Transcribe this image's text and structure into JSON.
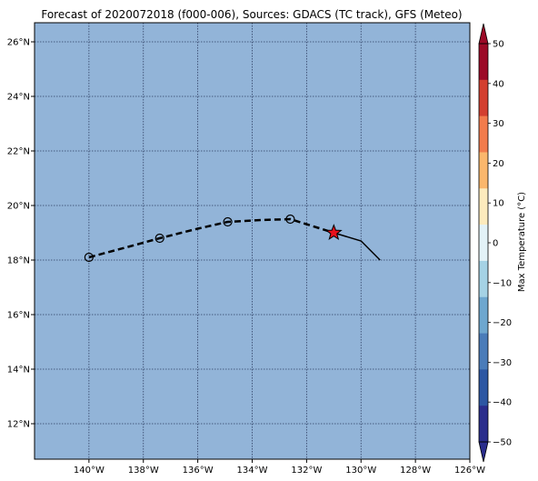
{
  "title": "Forecast of 2020072018 (f000-006), Sources: GDACS (TC track), GFS (Meteo)",
  "map": {
    "lon_range": [
      -142,
      -126
    ],
    "lat_range": [
      10.7,
      26.7
    ],
    "ocean_color": "#92b4d8",
    "grid": true,
    "lon_ticks": [
      -140,
      -138,
      -136,
      -134,
      -132,
      -130,
      -128,
      -126
    ],
    "lon_tick_labels": [
      "140°W",
      "138°W",
      "136°W",
      "134°W",
      "132°W",
      "130°W",
      "128°W",
      "126°W"
    ],
    "lat_ticks": [
      12,
      14,
      16,
      18,
      20,
      22,
      24,
      26
    ],
    "lat_tick_labels": [
      "12°N",
      "14°N",
      "16°N",
      "18°N",
      "20°N",
      "22°N",
      "24°N",
      "26°N"
    ]
  },
  "track": {
    "forecast_points": [
      {
        "lon": -140.0,
        "lat": 18.1
      },
      {
        "lon": -137.4,
        "lat": 18.8
      },
      {
        "lon": -134.9,
        "lat": 19.4
      },
      {
        "lon": -132.6,
        "lat": 19.5
      }
    ],
    "forecast_line": [
      {
        "lon": -140.0,
        "lat": 18.1
      },
      {
        "lon": -138.5,
        "lat": 18.5
      },
      {
        "lon": -137.4,
        "lat": 18.8
      },
      {
        "lon": -136.0,
        "lat": 19.15
      },
      {
        "lon": -134.9,
        "lat": 19.4
      },
      {
        "lon": -133.6,
        "lat": 19.47
      },
      {
        "lon": -132.6,
        "lat": 19.5
      },
      {
        "lon": -131.8,
        "lat": 19.25
      },
      {
        "lon": -131.0,
        "lat": 19.0
      }
    ],
    "past_line": [
      {
        "lon": -131.0,
        "lat": 19.0
      },
      {
        "lon": -130.0,
        "lat": 18.7
      },
      {
        "lon": -129.3,
        "lat": 18.0
      }
    ],
    "current_position": {
      "lon": -131.0,
      "lat": 19.0,
      "marker": "star",
      "color": "#e8111c"
    }
  },
  "colorbar": {
    "label": "Max Temperature (°C)",
    "min": -50,
    "max": 50,
    "ticks": [
      -50,
      -40,
      -30,
      -20,
      -10,
      0,
      10,
      20,
      30,
      40,
      50
    ],
    "tick_labels": [
      "−50",
      "−40",
      "−30",
      "−20",
      "−10",
      "0",
      "10",
      "20",
      "30",
      "40",
      "50"
    ],
    "bands": [
      "#2a2d8c",
      "#2c57a3",
      "#4a7cb9",
      "#6ea7cf",
      "#a5d2e5",
      "#e3f2f7",
      "#fdebbd",
      "#fbb76c",
      "#f27c4c",
      "#d33f2f",
      "#9c0a27"
    ],
    "extend": "both"
  }
}
